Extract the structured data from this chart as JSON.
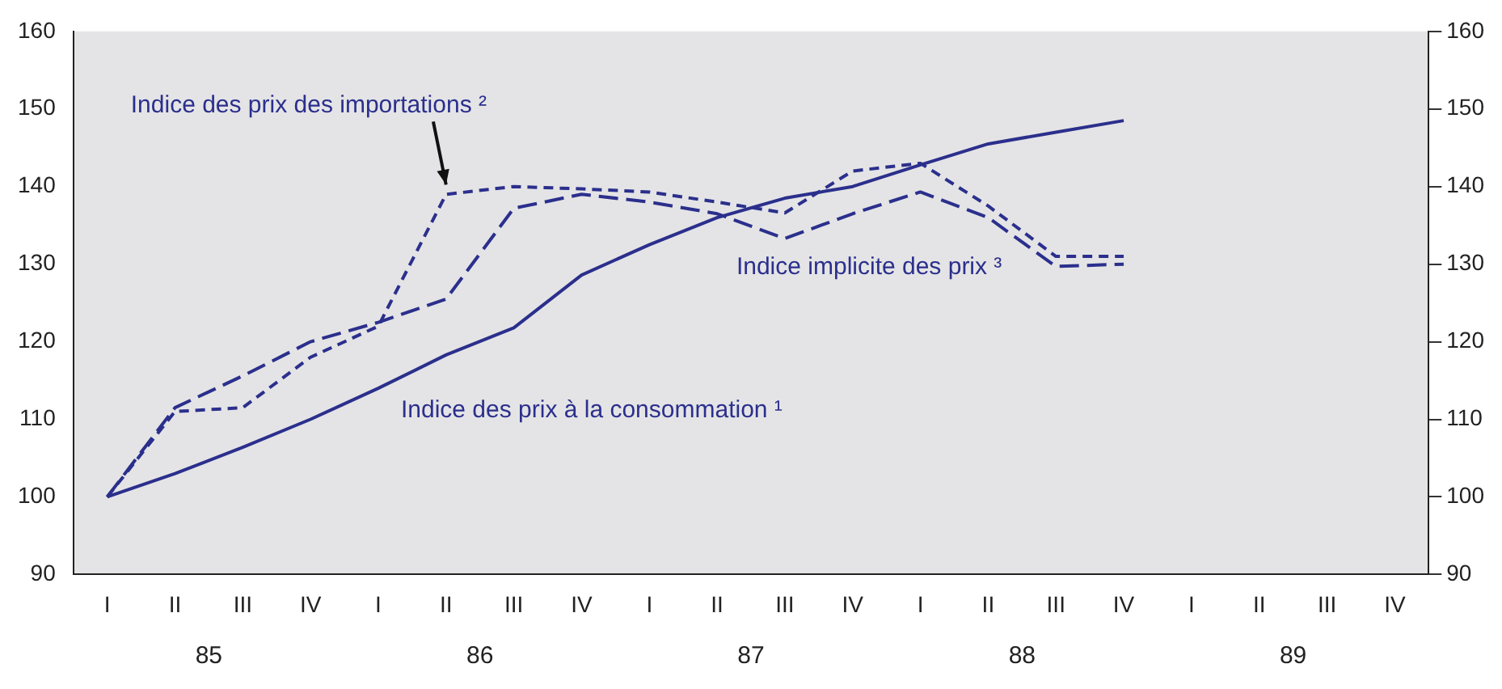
{
  "chart_data": {
    "type": "line",
    "categories": [
      "I",
      "II",
      "III",
      "IV",
      "I",
      "II",
      "III",
      "IV",
      "I",
      "II",
      "III",
      "IV",
      "I",
      "II",
      "III",
      "IV",
      "I",
      "II",
      "III",
      "IV"
    ],
    "series": [
      {
        "name": "Indice des prix des importations ²",
        "color": "#2b2f8c",
        "line_style": "dashed",
        "values": [
          100,
          111,
          111.5,
          118,
          122,
          139,
          140,
          139.7,
          139.3,
          138,
          136.6,
          142,
          143,
          137.5,
          131,
          131,
          null,
          null,
          null,
          null
        ]
      },
      {
        "name": "Indice implicite des prix ³",
        "color": "#2b2f8c",
        "line_style": "dashed",
        "values": [
          100,
          111.5,
          115.6,
          120,
          122.5,
          125.5,
          137.2,
          139,
          138,
          136.5,
          133.3,
          136.5,
          139.3,
          136,
          129.7,
          130,
          null,
          null,
          null,
          null
        ]
      },
      {
        "name": "Indice des prix à la consommation ¹",
        "color": "#2b2f8c",
        "line_style": "solid",
        "values": [
          100,
          103,
          106.4,
          110,
          114,
          118.3,
          121.8,
          128.6,
          132.5,
          136,
          138.5,
          140,
          142.8,
          145.5,
          147,
          148.5,
          null,
          null,
          null,
          null
        ]
      }
    ],
    "annotations": [
      "85",
      "86",
      "87",
      "88",
      "89"
    ],
    "ylim": [
      90,
      160
    ],
    "yticks": [
      90,
      100,
      110,
      120,
      130,
      140,
      150,
      160
    ],
    "y2lim": [
      90,
      160
    ],
    "y2ticks": [
      90,
      100,
      110,
      120,
      130,
      140,
      150,
      160
    ],
    "marker": "none",
    "grid": false,
    "legend": false
  }
}
